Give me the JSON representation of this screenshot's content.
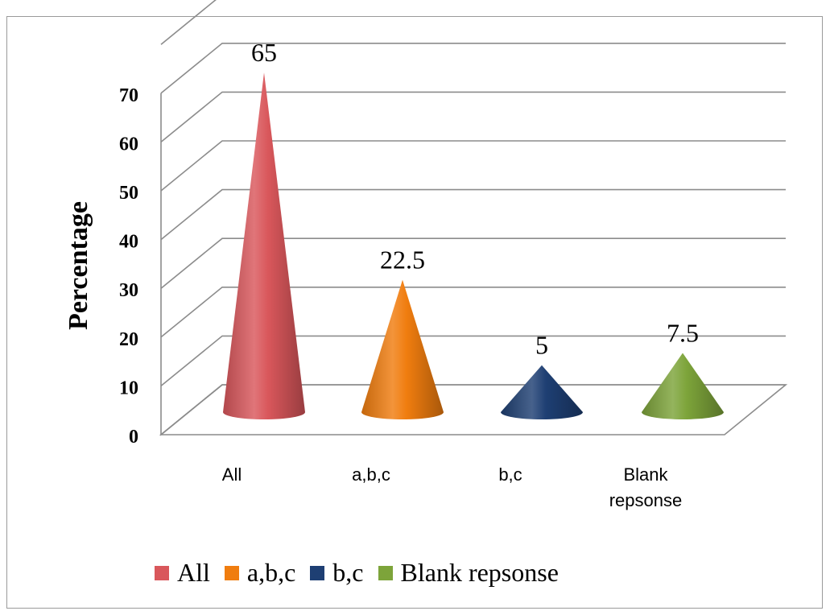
{
  "chart_data": {
    "type": "bar",
    "style": "3d-cone",
    "categories": [
      "All",
      "a,b,c",
      "b,c",
      "Blank repsonse"
    ],
    "values": [
      65,
      22.5,
      5,
      7.5
    ],
    "data_labels": [
      "65",
      "22.5",
      "5",
      "7.5"
    ],
    "colors": [
      "#d9575b",
      "#f07d0f",
      "#1e3f73",
      "#7da43a"
    ],
    "title": "",
    "xlabel": "",
    "ylabel": "Percentage",
    "ylim": [
      0,
      70
    ],
    "yticks": [
      "0",
      "10",
      "20",
      "30",
      "40",
      "50",
      "60",
      "70"
    ],
    "grid": true,
    "legend": {
      "position": "bottom",
      "entries": [
        "All",
        "a,b,c",
        "b,c",
        "Blank repsonse"
      ]
    }
  }
}
